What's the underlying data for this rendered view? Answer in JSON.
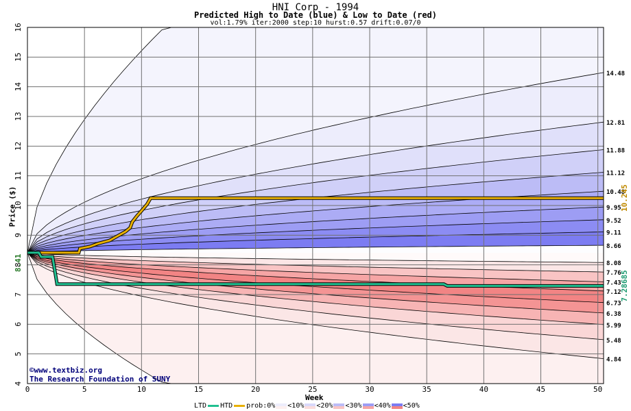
{
  "title": "HNI Corp - 1994",
  "subtitle": "Predicted High to Date (blue) &  Low to Date (red)",
  "params": "vol:1.79% iter:2000 step:10 hurst:0.57 drift:0.07/0",
  "credit": {
    "line1": "www.textbiz.org",
    "line2": "The Research Foundation of SUNY",
    "symbol": "©"
  },
  "colors": {
    "htd": "#e8b000",
    "ltd": "#20c090"
  },
  "chart_data": {
    "type": "area",
    "xlabel": "Week",
    "ylabel": "Price ($)",
    "xlim": [
      0,
      50.5
    ],
    "ylim": [
      4,
      16
    ],
    "x_ticks": [
      0,
      5,
      10,
      15,
      20,
      25,
      30,
      35,
      40,
      45,
      50
    ],
    "y_ticks": [
      4,
      5,
      6,
      7,
      8,
      9,
      10,
      11,
      12,
      13,
      14,
      15,
      16
    ],
    "grid": true,
    "start_price": 8.41,
    "start_label": "8.41",
    "end_labels": [
      "14.48",
      "12.81",
      "11.88",
      "11.12",
      "10.48",
      "9.95",
      "9.52",
      "9.11",
      "8.66",
      "8.08",
      "7.76",
      "7.43",
      "7.12",
      "6.73",
      "6.38",
      "5.99",
      "5.48",
      "4.84"
    ],
    "high_band_ends": [
      14.48,
      12.81,
      11.88,
      11.12,
      10.48,
      9.95,
      9.52,
      9.11,
      8.66
    ],
    "low_band_ends": [
      8.08,
      7.76,
      7.43,
      7.12,
      6.73,
      6.38,
      5.99,
      5.48,
      4.84
    ],
    "outer_bounds": {
      "upper": 16,
      "lower": 4
    },
    "htd_series": {
      "name": "HTD",
      "x": [
        0,
        4.5,
        4.6,
        5.5,
        6.2,
        7.2,
        7.8,
        8.6,
        9.0,
        9.2,
        9.6,
        10.0,
        10.5,
        10.8,
        50.5
      ],
      "y": [
        8.41,
        8.41,
        8.55,
        8.62,
        8.72,
        8.82,
        8.95,
        9.12,
        9.25,
        9.45,
        9.65,
        9.82,
        10.05,
        10.25,
        10.25
      ]
    },
    "ltd_series": {
      "name": "LTD",
      "x": [
        0,
        1.0,
        1.2,
        2.2,
        2.6,
        36.5,
        36.8,
        50.5
      ],
      "y": [
        8.41,
        8.41,
        8.27,
        8.27,
        7.35,
        7.35,
        7.29,
        7.29
      ]
    },
    "htd_end_label": "10.245",
    "ltd_end_label": "7.28685"
  },
  "legend": {
    "ltd": "LTD",
    "htd": "HTD",
    "prob": "prob:0%",
    "items": [
      "<10%",
      "<20%",
      "<30%",
      "<40%",
      "<50%"
    ],
    "blue_colors": [
      "#ededfc",
      "#d8d8fa",
      "#bcbcf6",
      "#9d9df4",
      "#7c7cf2"
    ],
    "red_colors": [
      "#fdf0f0",
      "#fbdcdc",
      "#f9c4c4",
      "#f6a5a5",
      "#f28484"
    ]
  }
}
